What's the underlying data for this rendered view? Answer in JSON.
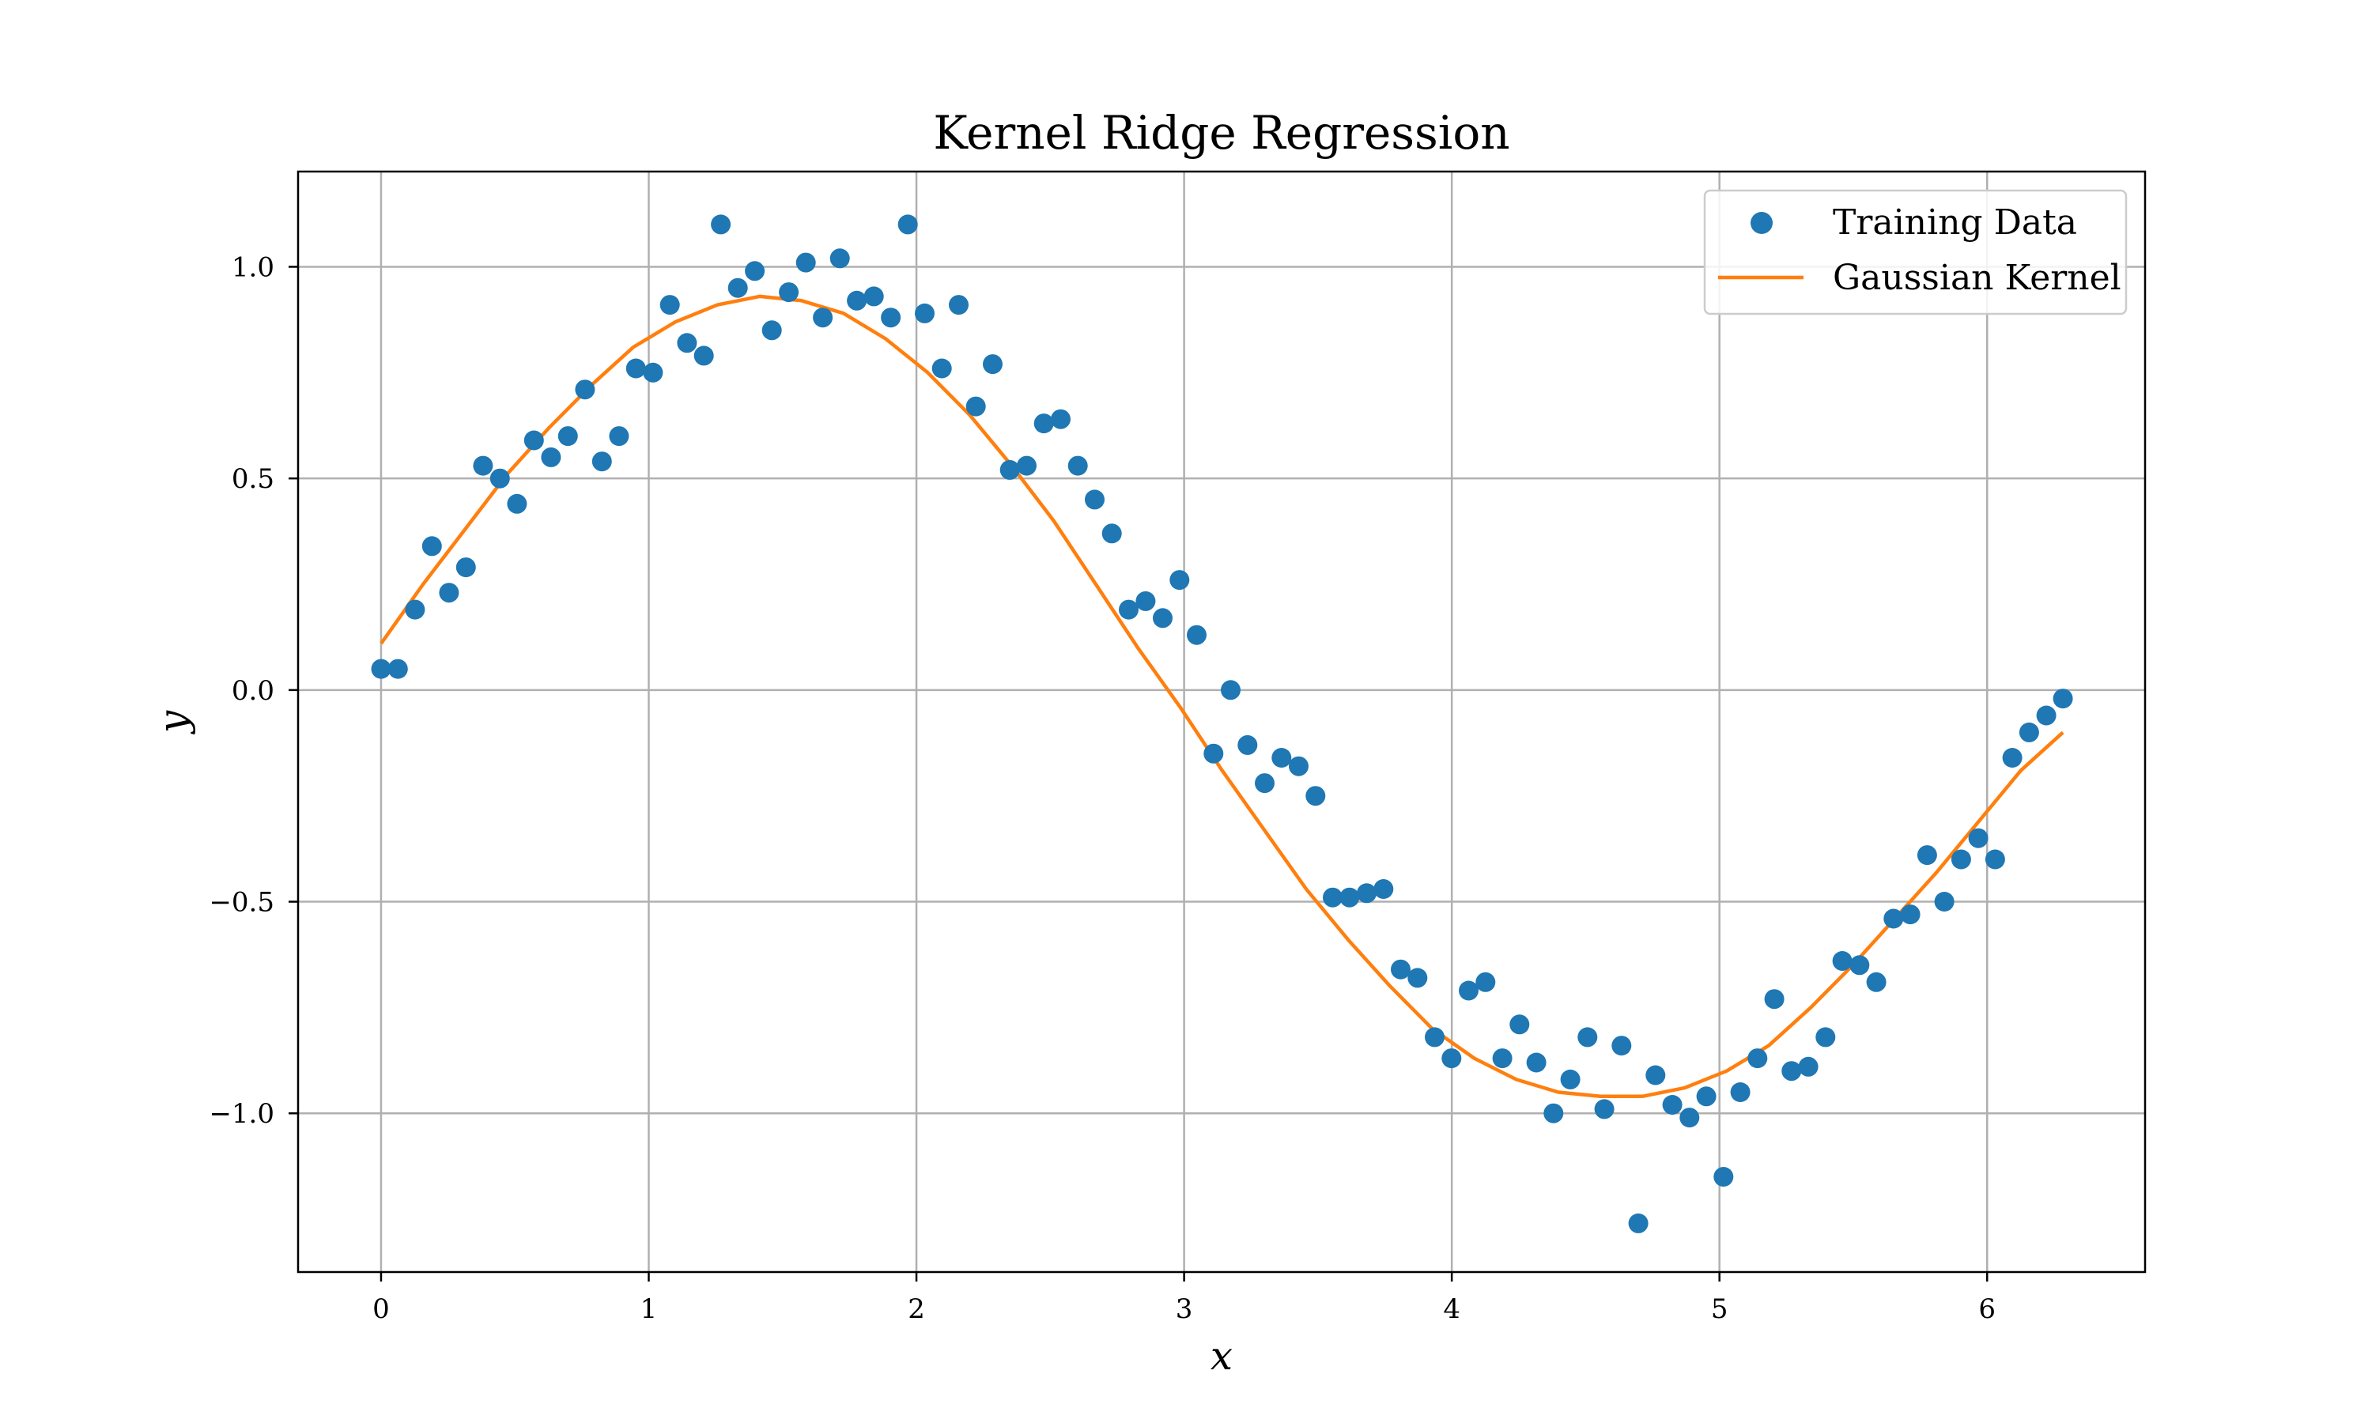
{
  "chart_data": {
    "type": "scatter",
    "title": "Kernel Ridge Regression",
    "xlabel": "x",
    "ylabel": "y",
    "xlim": [
      -0.31,
      6.59
    ],
    "ylim": [
      -1.375,
      1.225
    ],
    "xticks": [
      0,
      1,
      2,
      3,
      4,
      5,
      6
    ],
    "xtick_labels": [
      "0",
      "1",
      "2",
      "3",
      "4",
      "5",
      "6"
    ],
    "yticks": [
      1.0,
      0.5,
      0.0,
      -0.5,
      -1.0
    ],
    "ytick_labels": [
      "1.0",
      "0.5",
      "0.0",
      "−0.5",
      "−1.0"
    ],
    "grid": true,
    "legend_position": "top-right",
    "colors": {
      "training": "#1f77b4",
      "kernel": "#ff7f0e"
    },
    "series": [
      {
        "name": "Training Data",
        "kind": "scatter",
        "x": [
          0.0,
          0.063,
          0.127,
          0.19,
          0.254,
          0.317,
          0.381,
          0.444,
          0.508,
          0.571,
          0.635,
          0.698,
          0.762,
          0.825,
          0.889,
          0.952,
          1.016,
          1.079,
          1.143,
          1.206,
          1.269,
          1.333,
          1.396,
          1.46,
          1.523,
          1.587,
          1.65,
          1.714,
          1.777,
          1.841,
          1.904,
          1.968,
          2.031,
          2.095,
          2.158,
          2.222,
          2.285,
          2.349,
          2.412,
          2.476,
          2.539,
          2.603,
          2.666,
          2.73,
          2.793,
          2.856,
          2.92,
          2.983,
          3.047,
          3.11,
          3.174,
          3.237,
          3.301,
          3.364,
          3.428,
          3.491,
          3.555,
          3.618,
          3.682,
          3.745,
          3.809,
          3.872,
          3.936,
          3.999,
          4.063,
          4.126,
          4.189,
          4.253,
          4.316,
          4.38,
          4.443,
          4.507,
          4.57,
          4.634,
          4.697,
          4.761,
          4.824,
          4.888,
          4.951,
          5.015,
          5.078,
          5.142,
          5.205,
          5.269,
          5.332,
          5.396,
          5.459,
          5.523,
          5.586,
          5.65,
          5.713,
          5.776,
          5.84,
          5.903,
          5.967,
          6.03,
          6.094,
          6.157,
          6.221,
          6.283
        ],
        "y": [
          0.05,
          0.05,
          0.19,
          0.34,
          0.23,
          0.29,
          0.53,
          0.5,
          0.44,
          0.59,
          0.55,
          0.6,
          0.71,
          0.54,
          0.6,
          0.76,
          0.75,
          0.91,
          0.82,
          0.79,
          1.1,
          0.95,
          0.99,
          0.85,
          0.94,
          1.01,
          0.88,
          1.02,
          0.92,
          0.93,
          0.88,
          1.1,
          0.89,
          0.76,
          0.91,
          0.67,
          0.77,
          0.52,
          0.53,
          0.63,
          0.64,
          0.53,
          0.45,
          0.37,
          0.19,
          0.21,
          0.17,
          0.26,
          0.13,
          -0.15,
          0.0,
          -0.13,
          -0.22,
          -0.16,
          -0.18,
          -0.25,
          -0.49,
          -0.49,
          -0.48,
          -0.47,
          -0.66,
          -0.68,
          -0.82,
          -0.87,
          -0.71,
          -0.69,
          -0.87,
          -0.79,
          -0.88,
          -1.0,
          -0.92,
          -0.82,
          -0.99,
          -0.84,
          -1.26,
          -0.91,
          -0.98,
          -1.01,
          -0.96,
          -1.15,
          -0.95,
          -0.87,
          -0.73,
          -0.9,
          -0.89,
          -0.82,
          -0.64,
          -0.65,
          -0.69,
          -0.54,
          -0.53,
          -0.39,
          -0.5,
          -0.4,
          -0.35,
          -0.4,
          -0.16,
          -0.1,
          -0.06,
          -0.02
        ]
      },
      {
        "name": "Gaussian Kernel",
        "kind": "line",
        "x": [
          0.0,
          0.157,
          0.314,
          0.471,
          0.628,
          0.785,
          0.942,
          1.1,
          1.257,
          1.414,
          1.571,
          1.728,
          1.885,
          2.042,
          2.199,
          2.356,
          2.513,
          2.67,
          2.827,
          2.985,
          3.142,
          3.299,
          3.456,
          3.613,
          3.77,
          3.927,
          4.084,
          4.241,
          4.398,
          4.555,
          4.712,
          4.869,
          5.027,
          5.184,
          5.341,
          5.498,
          5.655,
          5.812,
          5.969,
          6.126,
          6.283
        ],
        "y": [
          0.11,
          0.25,
          0.38,
          0.51,
          0.62,
          0.72,
          0.81,
          0.87,
          0.91,
          0.93,
          0.92,
          0.89,
          0.83,
          0.75,
          0.65,
          0.53,
          0.4,
          0.25,
          0.1,
          -0.04,
          -0.19,
          -0.33,
          -0.47,
          -0.59,
          -0.7,
          -0.8,
          -0.87,
          -0.92,
          -0.95,
          -0.96,
          -0.96,
          -0.94,
          -0.9,
          -0.84,
          -0.75,
          -0.65,
          -0.54,
          -0.43,
          -0.31,
          -0.19,
          -0.1
        ]
      }
    ]
  }
}
